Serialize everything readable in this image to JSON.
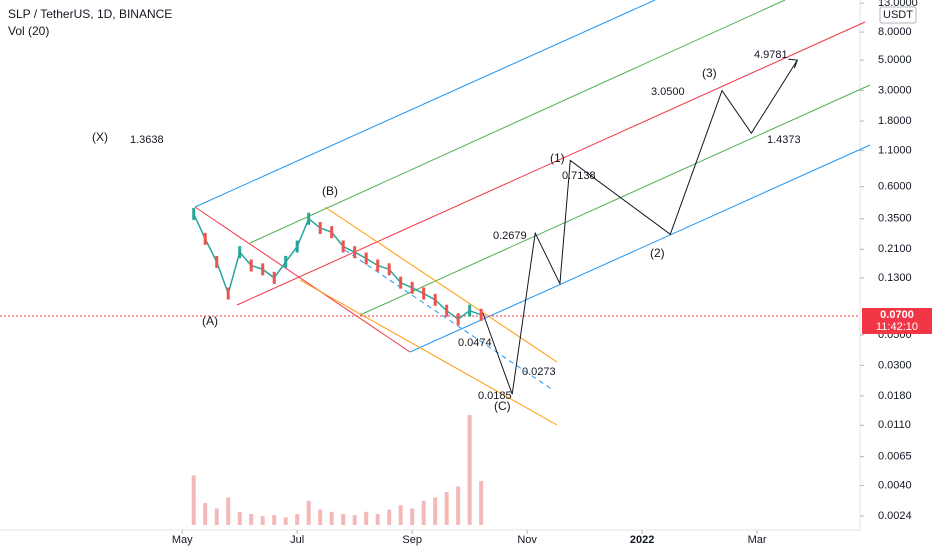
{
  "header": {
    "title": "SLP / TetherUS, 1D, BINANCE",
    "indicator": "Vol (20)",
    "currency": "USDT"
  },
  "chart_data": {
    "type": "candlestick-projection",
    "log_scale": true,
    "xlim": [
      1.83,
      16.79
    ],
    "xticks": [
      {
        "value": 5,
        "label": "May"
      },
      {
        "value": 7,
        "label": "Jul"
      },
      {
        "value": 9,
        "label": "Sep"
      },
      {
        "value": 11,
        "label": "Nov"
      },
      {
        "value": 13,
        "label": "2022"
      },
      {
        "value": 15,
        "label": "Mar"
      }
    ],
    "ylim": [
      0.0019,
      13.7
    ],
    "yticks": [
      {
        "value": 13,
        "label": "13.0000"
      },
      {
        "value": 8,
        "label": "8.0000"
      },
      {
        "value": 5,
        "label": "5.0000"
      },
      {
        "value": 3,
        "label": "3.0000"
      },
      {
        "value": 1.8,
        "label": "1.8000"
      },
      {
        "value": 1.1,
        "label": "1.1000"
      },
      {
        "value": 0.6,
        "label": "0.6000"
      },
      {
        "value": 0.35,
        "label": "0.3500"
      },
      {
        "value": 0.21,
        "label": "0.2100"
      },
      {
        "value": 0.13,
        "label": "0.1300"
      },
      {
        "value": 0.05,
        "label": "0.0500"
      },
      {
        "value": 0.03,
        "label": "0.0300"
      },
      {
        "value": 0.018,
        "label": "0.0180"
      },
      {
        "value": 0.011,
        "label": "0.0110"
      },
      {
        "value": 0.0065,
        "label": "0.0065"
      },
      {
        "value": 0.004,
        "label": "0.0040"
      },
      {
        "value": 0.0024,
        "label": "0.0024"
      }
    ],
    "series": [
      {
        "name": "SLP",
        "color": "#26a69a",
        "x": [
          5.2,
          5.4,
          5.6,
          5.8,
          6.0,
          6.2,
          6.4,
          6.6,
          6.8,
          7.0,
          7.2,
          7.4,
          7.6,
          7.8,
          8.0,
          8.2,
          8.4,
          8.6,
          8.8,
          9.0,
          9.2,
          9.4,
          9.6,
          9.8,
          10.0,
          10.2
        ],
        "values": [
          0.38,
          0.25,
          0.17,
          0.1,
          0.2,
          0.16,
          0.15,
          0.13,
          0.17,
          0.22,
          0.35,
          0.3,
          0.28,
          0.22,
          0.2,
          0.18,
          0.16,
          0.15,
          0.12,
          0.11,
          0.1,
          0.09,
          0.075,
          0.065,
          0.075,
          0.07
        ]
      },
      {
        "name": "Wave",
        "color": "#131722",
        "x": [
          10.23,
          10.74,
          11.14,
          11.57,
          11.75,
          13.49,
          14.39,
          14.9,
          15.7
        ],
        "values": [
          0.072,
          0.0185,
          0.275,
          0.118,
          0.93,
          0.27,
          3.0,
          1.47,
          5.0
        ]
      }
    ],
    "volume": {
      "color": "#ef9a9a",
      "lim": [
        0,
        100
      ],
      "values": [
        45,
        20,
        15,
        25,
        12,
        10,
        8,
        9,
        7,
        10,
        22,
        14,
        12,
        10,
        9,
        12,
        10,
        14,
        18,
        15,
        22,
        25,
        30,
        35,
        100,
        40
      ]
    },
    "annotations": [
      "(X)",
      "1.3638",
      "(A)",
      "(B)",
      "(C)",
      "0.0474",
      "0.0273",
      "0.0185",
      "0.2679",
      "(1)",
      "0.7138",
      "(2)",
      "(3)",
      "3.0500",
      "1.4373",
      "4.9781"
    ],
    "last_price": {
      "value": 0.07,
      "label": "0.0700"
    },
    "countdown": "11:42:10"
  }
}
